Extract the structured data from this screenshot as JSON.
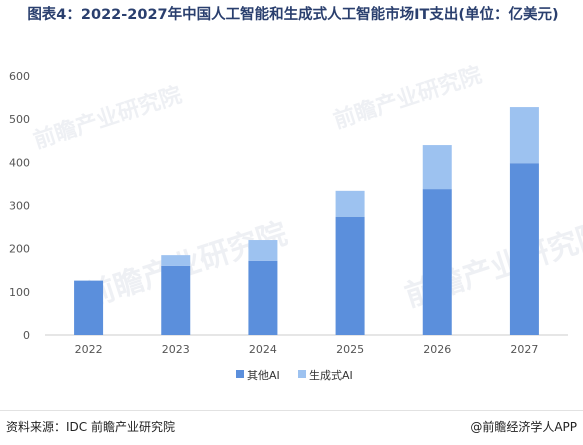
{
  "title": "图表4：2022-2027年中国人工智能和生成式人工智能市场IT支出(单位：亿美元)",
  "watermark_text": "前瞻产业研究院",
  "colors": {
    "other_ai": "#5b8fdc",
    "gen_ai": "#9dc2f0",
    "axis": "#cccccc",
    "text": "#555555"
  },
  "chart_data": {
    "type": "bar",
    "stacked": true,
    "categories": [
      "2022",
      "2023",
      "2024",
      "2025",
      "2026",
      "2027"
    ],
    "series": [
      {
        "name": "其他AI",
        "values": [
          126,
          160,
          172,
          274,
          338,
          398
        ]
      },
      {
        "name": "生成式AI",
        "values": [
          0,
          25,
          48,
          60,
          102,
          130
        ]
      }
    ],
    "ylim": [
      0,
      600
    ],
    "yticks": [
      0,
      100,
      200,
      300,
      400,
      500,
      600
    ],
    "xlabel": "",
    "ylabel": "",
    "grid": false,
    "legend_position": "bottom"
  },
  "footer": {
    "source": "资料来源：IDC 前瞻产业研究院",
    "brand": "@前瞻经济学人APP"
  }
}
